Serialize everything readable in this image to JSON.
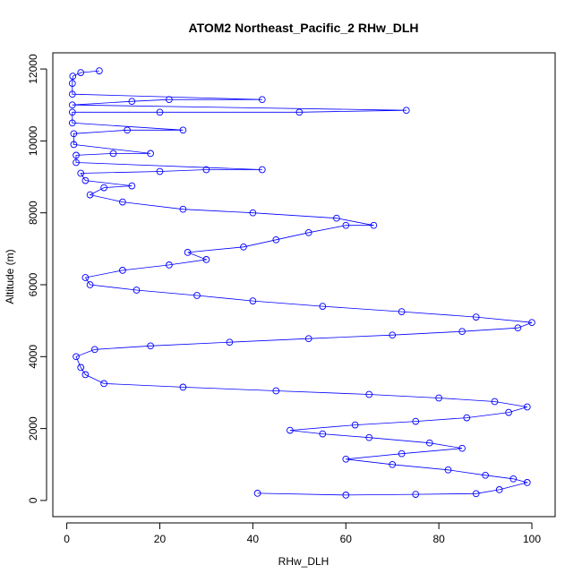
{
  "colors": {
    "series": "#0000FF",
    "axis": "#000000",
    "background": "#FFFFFF"
  },
  "chart_data": {
    "type": "scatter",
    "title": "ATOM2 Northeast_Pacific_2 RHw_DLH",
    "xlabel": "RHw_DLH",
    "ylabel": "Altitude (m)",
    "xlim": [
      -3,
      105
    ],
    "ylim": [
      -450,
      12450
    ],
    "x_ticks": [
      0,
      20,
      40,
      60,
      80,
      100
    ],
    "y_ticks": [
      0,
      2000,
      4000,
      6000,
      8000,
      10000,
      12000
    ],
    "grid": false,
    "legend": "none",
    "marker": "open-circle",
    "connected": true,
    "series": [
      {
        "values": [
          {
            "x": 41,
            "y": 200
          },
          {
            "x": 60,
            "y": 150
          },
          {
            "x": 75,
            "y": 170
          },
          {
            "x": 88,
            "y": 190
          },
          {
            "x": 93,
            "y": 300
          },
          {
            "x": 99,
            "y": 500
          },
          {
            "x": 96,
            "y": 600
          },
          {
            "x": 90,
            "y": 700
          },
          {
            "x": 82,
            "y": 850
          },
          {
            "x": 70,
            "y": 1000
          },
          {
            "x": 60,
            "y": 1150
          },
          {
            "x": 72,
            "y": 1300
          },
          {
            "x": 85,
            "y": 1450
          },
          {
            "x": 78,
            "y": 1600
          },
          {
            "x": 65,
            "y": 1750
          },
          {
            "x": 55,
            "y": 1850
          },
          {
            "x": 48,
            "y": 1950
          },
          {
            "x": 62,
            "y": 2100
          },
          {
            "x": 75,
            "y": 2200
          },
          {
            "x": 86,
            "y": 2300
          },
          {
            "x": 95,
            "y": 2450
          },
          {
            "x": 99,
            "y": 2600
          },
          {
            "x": 92,
            "y": 2750
          },
          {
            "x": 80,
            "y": 2850
          },
          {
            "x": 65,
            "y": 2950
          },
          {
            "x": 45,
            "y": 3050
          },
          {
            "x": 25,
            "y": 3150
          },
          {
            "x": 8,
            "y": 3250
          },
          {
            "x": 4,
            "y": 3500
          },
          {
            "x": 3,
            "y": 3700
          },
          {
            "x": 2,
            "y": 4000
          },
          {
            "x": 6,
            "y": 4200
          },
          {
            "x": 18,
            "y": 4300
          },
          {
            "x": 35,
            "y": 4400
          },
          {
            "x": 52,
            "y": 4500
          },
          {
            "x": 70,
            "y": 4600
          },
          {
            "x": 85,
            "y": 4700
          },
          {
            "x": 97,
            "y": 4800
          },
          {
            "x": 100,
            "y": 4950
          },
          {
            "x": 88,
            "y": 5100
          },
          {
            "x": 72,
            "y": 5250
          },
          {
            "x": 55,
            "y": 5400
          },
          {
            "x": 40,
            "y": 5550
          },
          {
            "x": 28,
            "y": 5700
          },
          {
            "x": 15,
            "y": 5850
          },
          {
            "x": 5,
            "y": 6000
          },
          {
            "x": 4,
            "y": 6200
          },
          {
            "x": 12,
            "y": 6400
          },
          {
            "x": 22,
            "y": 6550
          },
          {
            "x": 30,
            "y": 6700
          },
          {
            "x": 26,
            "y": 6900
          },
          {
            "x": 38,
            "y": 7050
          },
          {
            "x": 45,
            "y": 7250
          },
          {
            "x": 52,
            "y": 7450
          },
          {
            "x": 60,
            "y": 7650
          },
          {
            "x": 66,
            "y": 7650
          },
          {
            "x": 58,
            "y": 7850
          },
          {
            "x": 40,
            "y": 8000
          },
          {
            "x": 25,
            "y": 8100
          },
          {
            "x": 12,
            "y": 8300
          },
          {
            "x": 5,
            "y": 8500
          },
          {
            "x": 8,
            "y": 8700
          },
          {
            "x": 14,
            "y": 8750
          },
          {
            "x": 4,
            "y": 8900
          },
          {
            "x": 3,
            "y": 9100
          },
          {
            "x": 20,
            "y": 9150
          },
          {
            "x": 30,
            "y": 9200
          },
          {
            "x": 42,
            "y": 9200
          },
          {
            "x": 2,
            "y": 9400
          },
          {
            "x": 2,
            "y": 9600
          },
          {
            "x": 10,
            "y": 9650
          },
          {
            "x": 18,
            "y": 9650
          },
          {
            "x": 1.5,
            "y": 9900
          },
          {
            "x": 1.5,
            "y": 10200
          },
          {
            "x": 13,
            "y": 10300
          },
          {
            "x": 25,
            "y": 10300
          },
          {
            "x": 1.2,
            "y": 10500
          },
          {
            "x": 1.2,
            "y": 10800
          },
          {
            "x": 20,
            "y": 10800
          },
          {
            "x": 50,
            "y": 10800
          },
          {
            "x": 73,
            "y": 10850
          },
          {
            "x": 1.2,
            "y": 11000
          },
          {
            "x": 14,
            "y": 11100
          },
          {
            "x": 22,
            "y": 11150
          },
          {
            "x": 42,
            "y": 11150
          },
          {
            "x": 1.2,
            "y": 11300
          },
          {
            "x": 1.2,
            "y": 11600
          },
          {
            "x": 1.3,
            "y": 11800
          },
          {
            "x": 3,
            "y": 11900
          },
          {
            "x": 7,
            "y": 11950
          }
        ]
      }
    ]
  }
}
